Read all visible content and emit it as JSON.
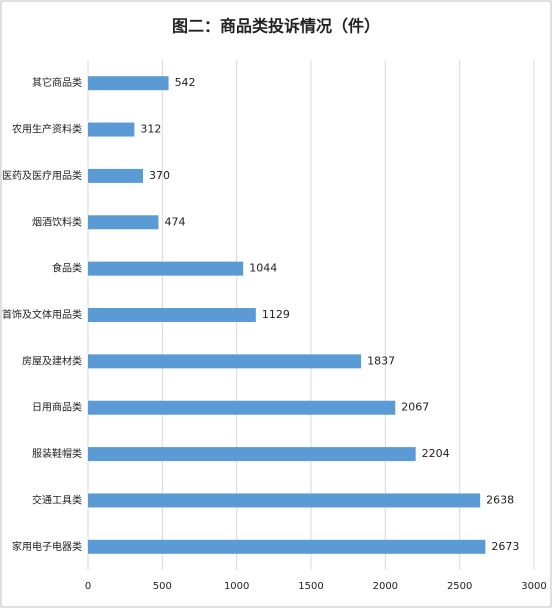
{
  "chart_data": {
    "type": "barh",
    "title": "图二：商品类投诉情况（件）",
    "categories": [
      "其它商品类",
      "农用生产资料类",
      "医药及医疗用品类",
      "烟酒饮料类",
      "食品类",
      "首饰及文体用品类",
      "房屋及建材类",
      "日用商品类",
      "服装鞋帽类",
      "交通工具类",
      "家用电子电器类"
    ],
    "values": [
      542,
      312,
      370,
      474,
      1044,
      1129,
      1837,
      2067,
      2204,
      2638,
      2673
    ],
    "color": "#5b9bd5",
    "xlim": [
      0,
      3000
    ],
    "xticks": [
      0,
      500,
      1000,
      1500,
      2000,
      2500,
      3000
    ],
    "grid": true
  }
}
